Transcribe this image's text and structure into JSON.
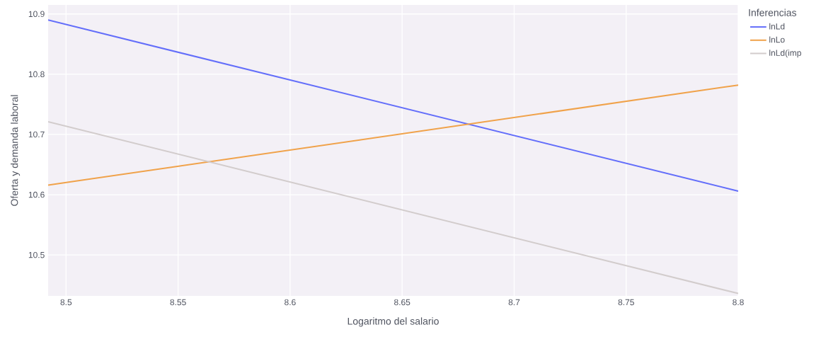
{
  "chart_data": {
    "type": "line",
    "xlabel": "Logaritmo del salario",
    "ylabel": "Oferta y demanda laboral",
    "legend_title": "Inferencias",
    "xlim": [
      8.492,
      8.8
    ],
    "ylim": [
      10.432,
      10.915
    ],
    "xticks": [
      8.5,
      8.55,
      8.6,
      8.65,
      8.7,
      8.75,
      8.8
    ],
    "yticks": [
      10.5,
      10.6,
      10.7,
      10.8,
      10.9
    ],
    "grid": true,
    "legend": "top right",
    "line_style": "solid",
    "marker": "none",
    "x": [
      8.492,
      8.8
    ],
    "series": [
      {
        "name": "lnLd",
        "color": "#636efa",
        "values": [
          10.89,
          10.606
        ]
      },
      {
        "name": "lnLo",
        "color": "#f0a24a",
        "values": [
          10.616,
          10.782
        ]
      },
      {
        "name": "lnLd(imp",
        "color": "#d2cccc",
        "values": [
          10.721,
          10.436
        ]
      }
    ]
  }
}
